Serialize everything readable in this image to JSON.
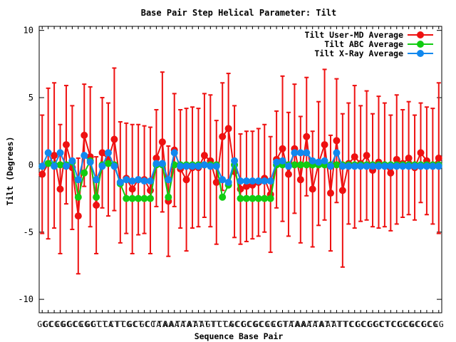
{
  "chart_data": {
    "type": "line",
    "title": "Base Pair Step Helical Parameter: Tilt",
    "xlabel": "Sequence Base Pair",
    "ylabel": "Tilt (Degrees)",
    "ylim": [
      -11,
      10.3
    ],
    "yticks": [
      10,
      5,
      0,
      -5,
      -10
    ],
    "legend_position": "top-right",
    "grid": false,
    "x_ticks": [
      "GC",
      "GC",
      "CG",
      "CG",
      "GC",
      "GC",
      "CG",
      "CG",
      "GC",
      "GT",
      "CT",
      "CA",
      "CT",
      "TT",
      "CG",
      "GC",
      "CT",
      "GC",
      "CC",
      "TA",
      "TA",
      "AA",
      "AA",
      "TA",
      "TA",
      "AT",
      "AT",
      "AT",
      "GT",
      "TT",
      "CT",
      "CA",
      "GC",
      "CC",
      "GC",
      "CG",
      "GC",
      "CG",
      "CG",
      "CC",
      "GT",
      "TA",
      "TA",
      "AA",
      "AA",
      "TA",
      "TA",
      "AT",
      "AT",
      "AT",
      "TT",
      "TC",
      "CC",
      "GC",
      "CC",
      "GC",
      "GC",
      "CT",
      "TC",
      "CC",
      "GC",
      "CG",
      "GC",
      "CC",
      "GC",
      "CG",
      "CG"
    ],
    "series": [
      {
        "name": "Tilt User-MD Average",
        "color": "#ee1111",
        "values": [
          -0.7,
          0.1,
          0.7,
          -1.8,
          1.5,
          -0.2,
          -3.8,
          2.2,
          0.6,
          -3.0,
          0.9,
          0.4,
          1.9,
          -1.3,
          -1.0,
          -1.8,
          -1.1,
          -1.1,
          -1.9,
          0.5,
          1.7,
          -2.7,
          1.1,
          -0.3,
          -1.1,
          -0.2,
          -0.2,
          0.7,
          0.3,
          -1.3,
          2.1,
          2.7,
          -0.5,
          -1.8,
          -1.6,
          -1.5,
          -1.3,
          -1.0,
          -2.2,
          0.4,
          1.2,
          -0.7,
          1.2,
          -1.1,
          2.1,
          -1.8,
          0.1,
          1.5,
          -2.1,
          1.8,
          -1.9,
          0.1,
          0.6,
          0.1,
          0.7,
          -0.4,
          0.2,
          0.0,
          -0.6,
          0.4,
          0.1,
          0.5,
          -0.2,
          0.9,
          0.3,
          -0.1,
          0.5
        ],
        "errors": [
          4.4,
          5.6,
          5.4,
          4.8,
          4.4,
          4.6,
          4.3,
          3.8,
          5.2,
          3.6,
          4.1,
          4.2,
          5.3,
          4.5,
          4.1,
          4.8,
          4.1,
          4.0,
          4.7,
          3.6,
          5.2,
          4.1,
          4.2,
          4.4,
          5.3,
          4.5,
          4.4,
          4.6,
          4.9,
          4.6,
          4.0,
          4.1,
          4.9,
          4.1,
          4.1,
          4.0,
          4.0,
          4.0,
          4.3,
          3.6,
          5.4,
          4.6,
          4.8,
          4.7,
          4.4,
          4.3,
          4.6,
          5.6,
          4.3,
          4.6,
          5.7,
          4.5,
          5.3,
          4.3,
          4.8,
          4.2,
          4.9,
          4.6,
          4.3,
          4.8,
          4.0,
          4.2,
          3.9,
          3.7,
          4.0,
          4.3,
          5.6
        ]
      },
      {
        "name": "Tilt ABC Average",
        "color": "#11cc11",
        "values": [
          -0.1,
          0.1,
          0.0,
          0.0,
          0.0,
          0.2,
          -2.4,
          -0.6,
          0.3,
          -2.4,
          0.0,
          0.1,
          0.0,
          -1.4,
          -2.5,
          -2.5,
          -2.5,
          -2.5,
          -2.5,
          0.0,
          0.0,
          -2.4,
          0.0,
          0.0,
          0.0,
          0.0,
          0.0,
          0.0,
          0.0,
          0.0,
          -2.4,
          -1.5,
          0.0,
          -2.5,
          -2.5,
          -2.5,
          -2.5,
          -2.5,
          -2.5,
          0.0,
          0.0,
          0.0,
          0.0,
          0.0,
          0.0,
          0.0,
          0.0,
          0.0,
          0.0,
          0.0,
          0.0,
          0.0,
          0.0,
          0.0,
          0.0,
          0.0,
          0.0,
          0.0,
          0.0,
          0.0,
          0.0,
          0.0,
          0.0,
          0.0,
          0.0,
          0.0,
          0.0
        ]
      },
      {
        "name": "Tilt X-Ray Average",
        "color": "#1188ee",
        "values": [
          -0.1,
          0.9,
          -0.1,
          0.9,
          -0.1,
          0.3,
          -1.1,
          0.7,
          0.2,
          -1.1,
          -0.1,
          0.9,
          -0.1,
          -1.3,
          -1.1,
          -1.2,
          -1.1,
          -1.2,
          -1.2,
          0.1,
          0.1,
          -1.1,
          0.9,
          -0.1,
          -0.1,
          -0.1,
          -0.1,
          0.0,
          -0.1,
          -0.1,
          -1.1,
          -1.3,
          0.3,
          -1.2,
          -1.2,
          -1.2,
          -1.2,
          -1.2,
          -1.2,
          0.2,
          0.3,
          -0.1,
          0.9,
          0.9,
          0.9,
          0.3,
          0.2,
          0.3,
          -0.1,
          0.9,
          -0.1,
          -0.1,
          -0.1,
          -0.1,
          -0.1,
          -0.1,
          -0.1,
          -0.1,
          -0.1,
          -0.1,
          -0.1,
          -0.1,
          -0.1,
          -0.1,
          -0.1,
          -0.1,
          -0.1
        ]
      }
    ]
  }
}
